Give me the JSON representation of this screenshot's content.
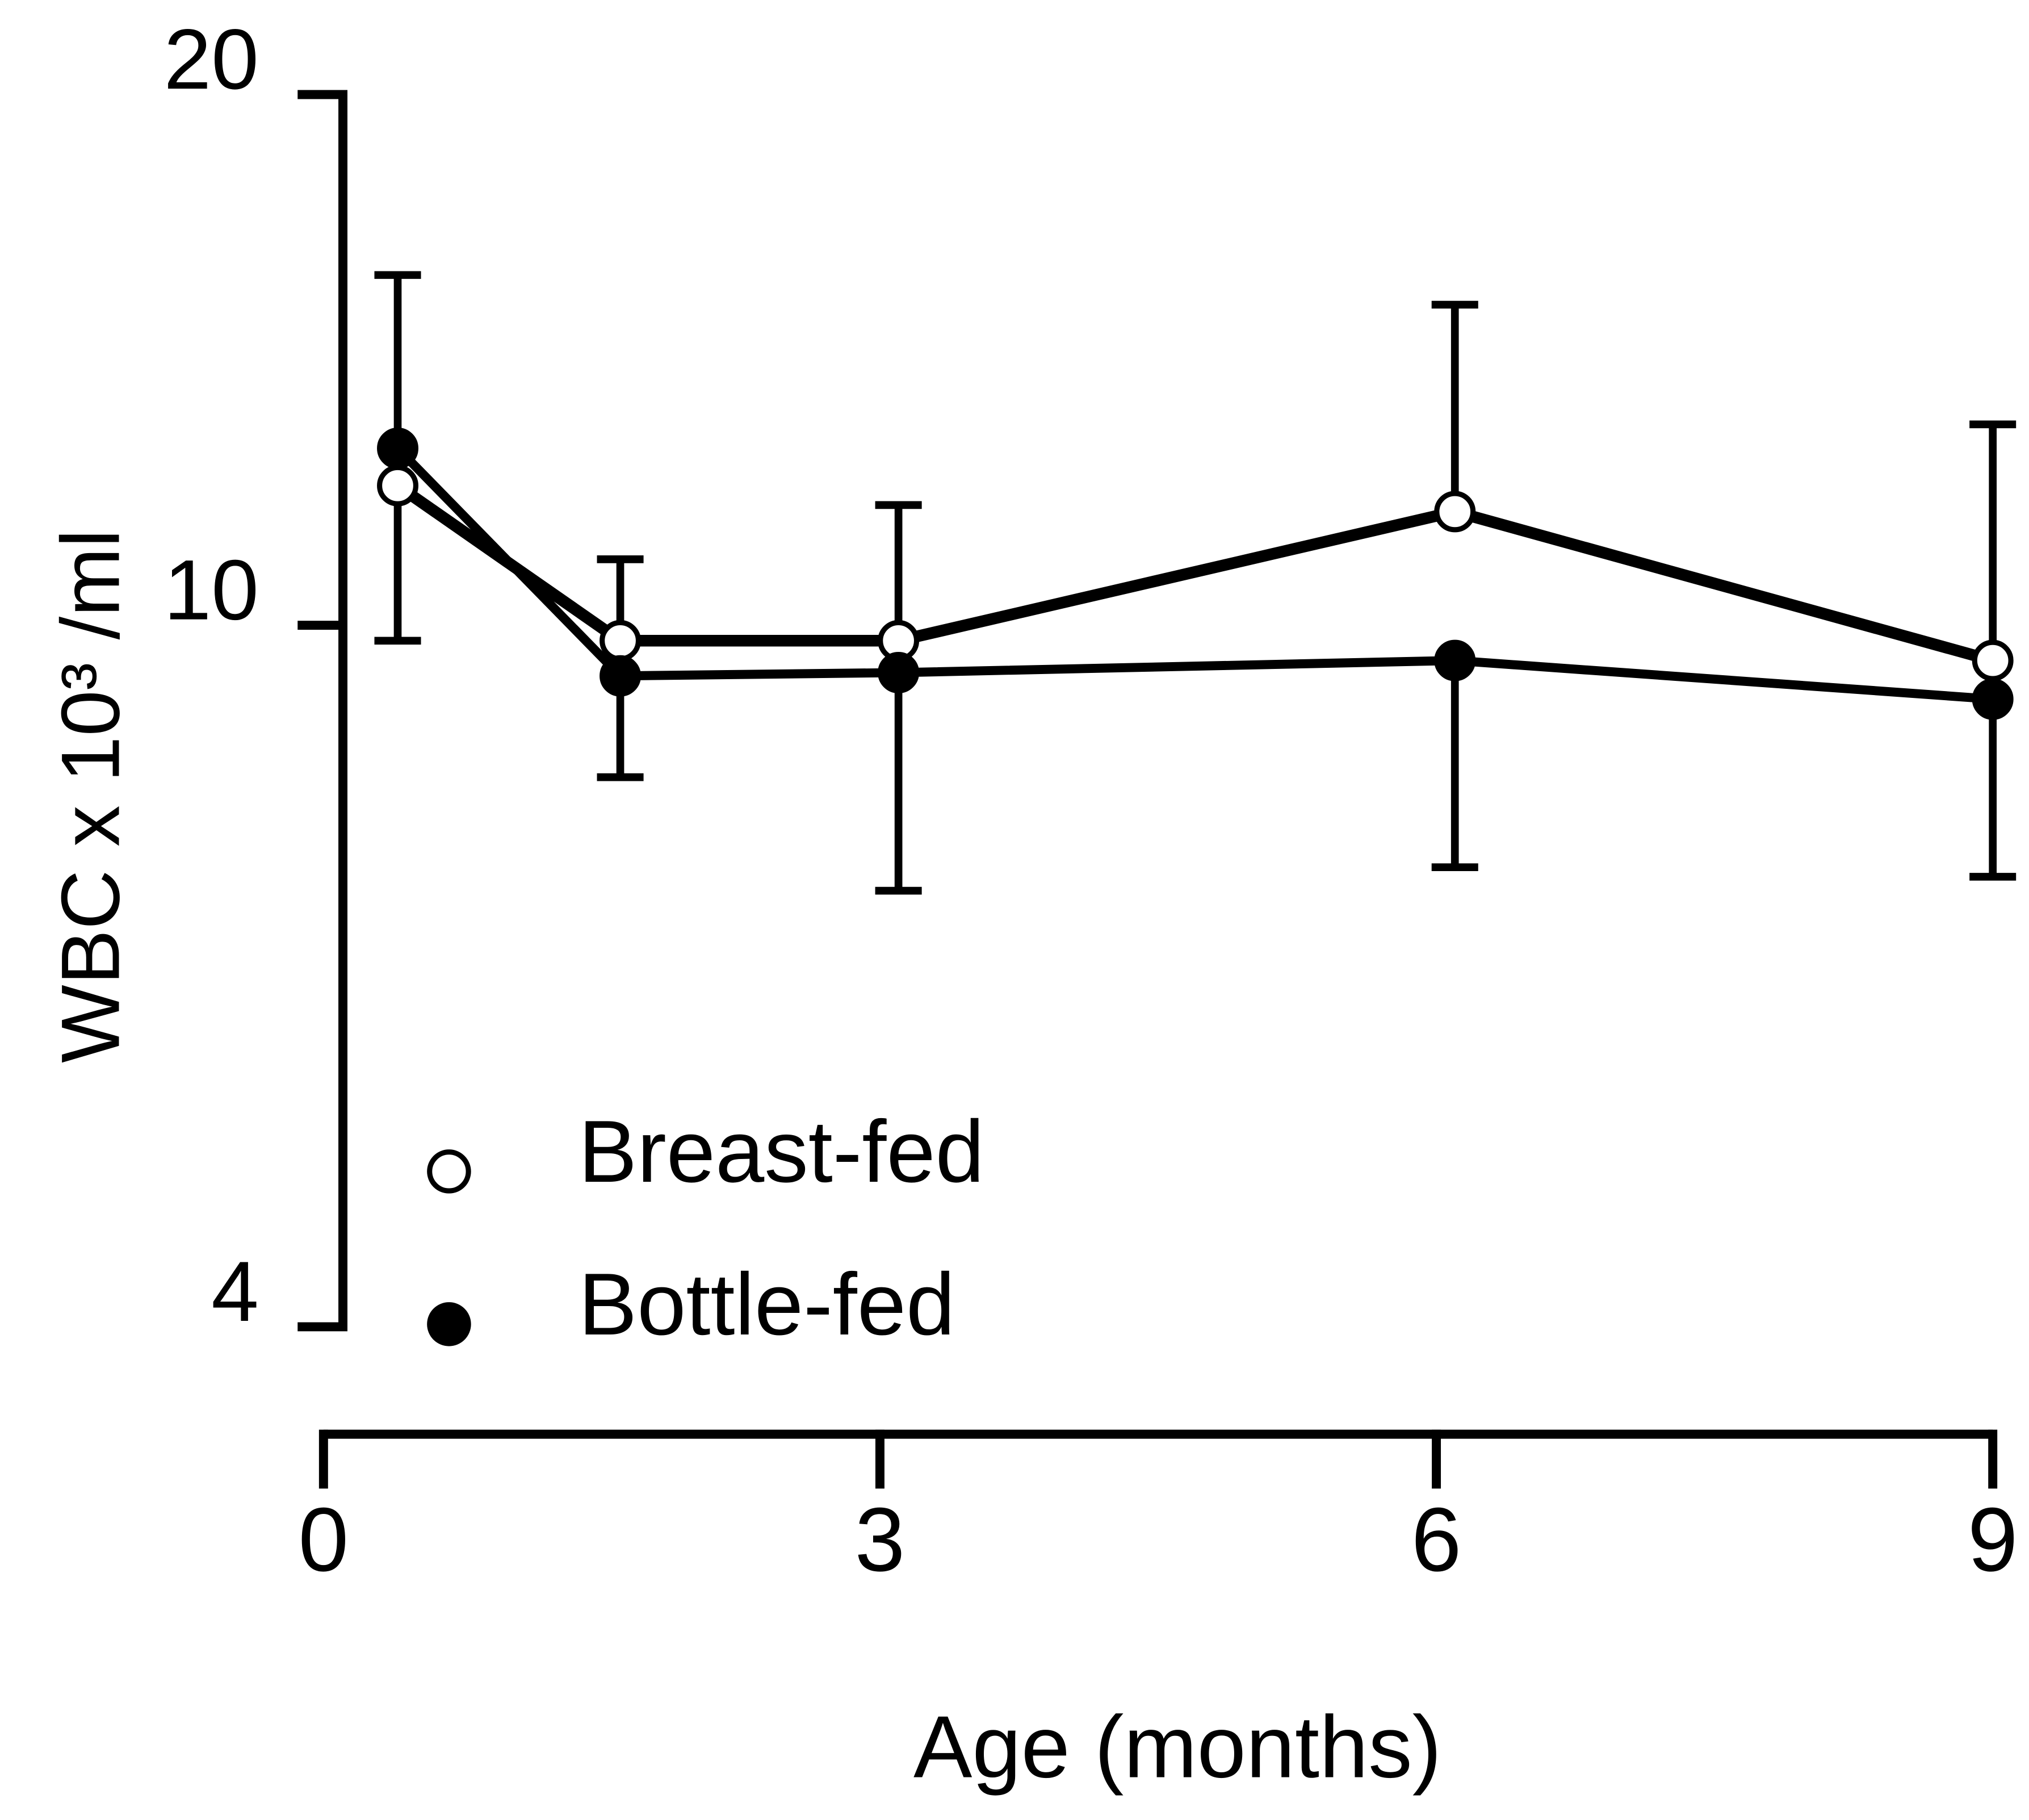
{
  "chart_data": {
    "type": "line",
    "xlabel": "Age (months)",
    "ylabel": "WBC x 10³ /ml",
    "x": [
      0.4,
      1.6,
      3.1,
      6.1,
      9
    ],
    "series": [
      {
        "name": "Breast-fed",
        "color": "#000000",
        "fill": "#ffffff",
        "values": [
          12.0,
          9.8,
          9.8,
          11.6,
          9.55
        ],
        "error_up": [
          null,
          1.1,
          1.9,
          3.6,
          3.45
        ],
        "error_down": [
          2.2,
          null,
          null,
          null,
          null
        ]
      },
      {
        "name": "Bottle-fed",
        "color": "#000000",
        "fill": "#000000",
        "values": [
          12.6,
          9.36,
          9.4,
          9.55,
          9.08
        ],
        "error_up": [
          3.2,
          null,
          null,
          null,
          null
        ],
        "error_down": [
          null,
          1.16,
          2.33,
          2.26,
          1.88
        ]
      }
    ],
    "xlim": [
      0,
      9
    ],
    "xticks": [
      0,
      3,
      6,
      9
    ],
    "ylim": [
      4,
      20
    ],
    "yticks": [
      4,
      10,
      20
    ],
    "ylog": true,
    "legend": "lower left"
  }
}
